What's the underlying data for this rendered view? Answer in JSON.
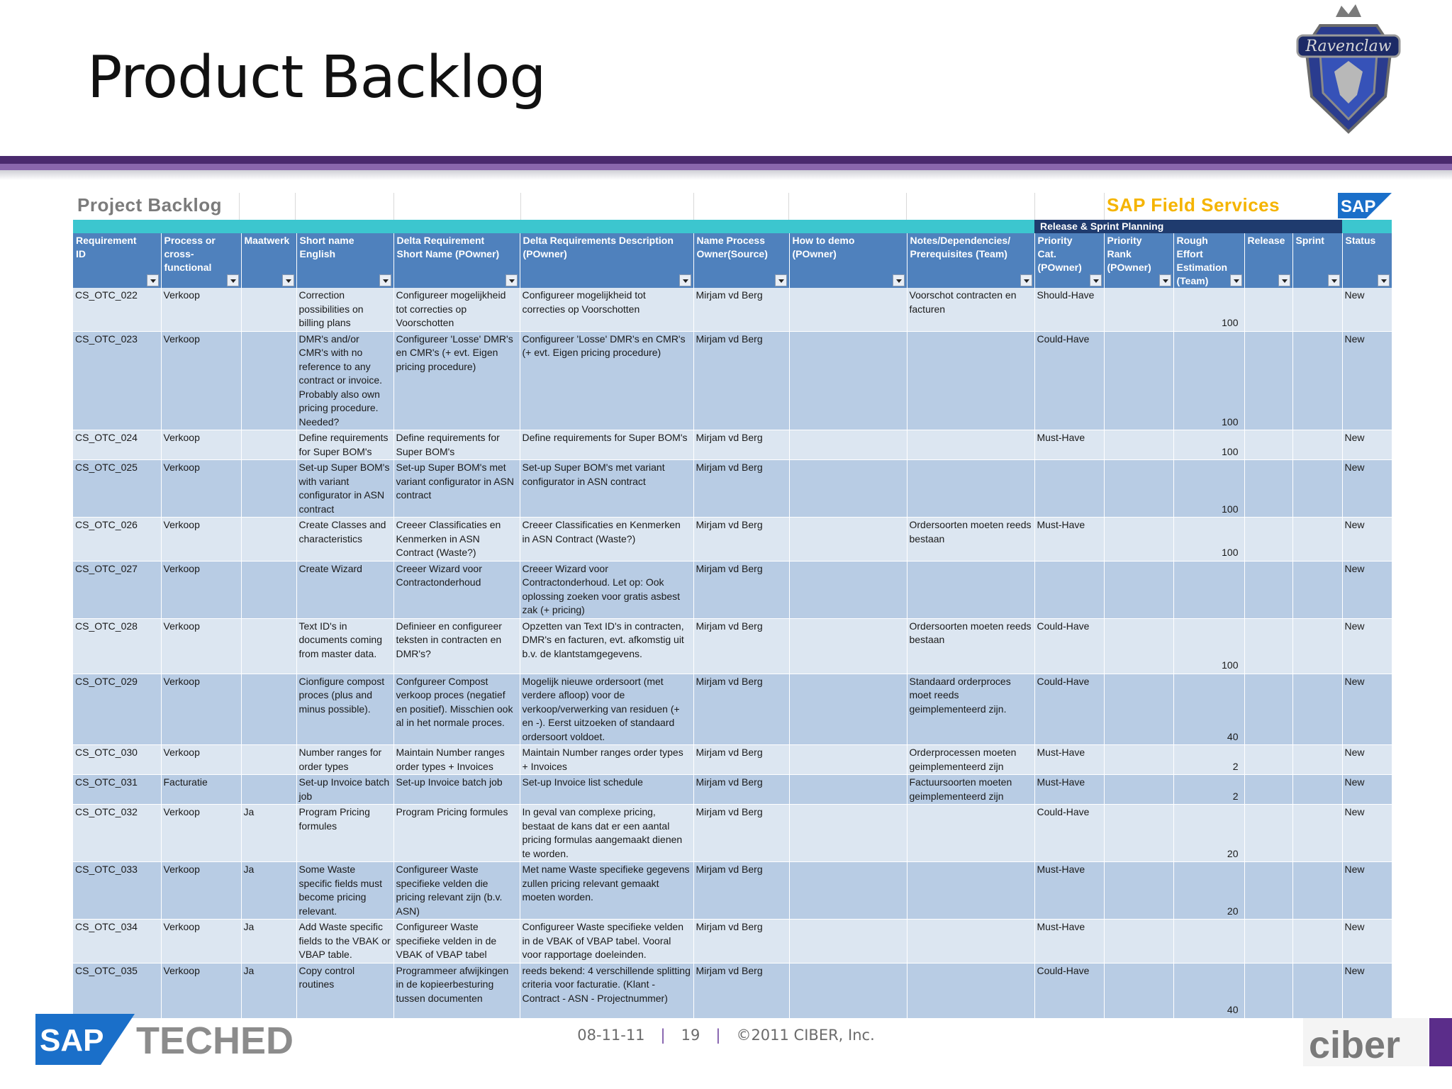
{
  "slide": {
    "title": "Product Backlog",
    "crest_text": "Ravenclaw"
  },
  "sheet": {
    "title": "Project Backlog",
    "brand": "SAP Field Services",
    "sap_logo_text": "SAP",
    "release_group": "Release & Sprint Planning"
  },
  "columns": [
    "Requirement ID",
    "Process or cross-functional",
    "Maatwerk",
    "Short name English",
    "Delta Requirement Short Name (POwner)",
    "Delta Requirements Description (POwner)",
    "Name Process Owner(Source)",
    "How to demo (POwner)",
    "Notes/Dependencies/ Prerequisites (Team)",
    "Priority Cat. (POwner)",
    "Priority Rank (POwner)",
    "Rough Effort Estimation (Team)",
    "Release",
    "Sprint",
    "Status"
  ],
  "rows": [
    [
      "CS_OTC_022",
      "Verkoop",
      "",
      "Correction possibilities on billing plans",
      "Configureer mogelijkheid tot correcties op Voorschotten",
      "Configureer mogelijkheid tot correcties op Voorschotten",
      "Mirjam vd Berg",
      "",
      "Voorschot contracten en facturen",
      "Should-Have",
      "",
      "100",
      "",
      "",
      "New"
    ],
    [
      "CS_OTC_023",
      "Verkoop",
      "",
      "DMR's and/or CMR's with no reference to any contract or invoice. Probably also own pricing procedure. Needed?",
      "Configureer 'Losse' DMR's en CMR's (+ evt. Eigen pricing procedure)",
      "Configureer 'Losse' DMR's en CMR's (+ evt. Eigen pricing procedure)",
      "Mirjam vd Berg",
      "",
      "",
      "Could-Have",
      "",
      "100",
      "",
      "",
      "New"
    ],
    [
      "CS_OTC_024",
      "Verkoop",
      "",
      "Define requirements for Super BOM's",
      "Define requirements for Super BOM's",
      "Define requirements for Super BOM's",
      "Mirjam vd Berg",
      "",
      "",
      "Must-Have",
      "",
      "100",
      "",
      "",
      "New"
    ],
    [
      "CS_OTC_025",
      "Verkoop",
      "",
      "Set-up Super BOM's with variant configurator in ASN contract",
      "Set-up Super BOM's met variant configurator in ASN contract",
      "Set-up Super BOM's met variant configurator in ASN contract",
      "Mirjam vd Berg",
      "",
      "",
      "",
      "",
      "100",
      "",
      "",
      "New"
    ],
    [
      "CS_OTC_026",
      "Verkoop",
      "",
      "Create Classes and characteristics",
      "Creeer Classificaties en Kenmerken in ASN Contract (Waste?)",
      "Creeer Classificaties en Kenmerken in ASN Contract (Waste?)",
      "Mirjam vd Berg",
      "",
      "Ordersoorten moeten reeds bestaan",
      "Must-Have",
      "",
      "100",
      "",
      "",
      "New"
    ],
    [
      "CS_OTC_027",
      "Verkoop",
      "",
      "Create Wizard",
      "Creeer Wizard voor Contractonderhoud",
      "Creeer Wizard voor Contractonderhoud. Let op: Ook oplossing zoeken voor gratis asbest zak (+ pricing)",
      "Mirjam vd Berg",
      "",
      "",
      "",
      "",
      "",
      "",
      "",
      "New"
    ],
    [
      "CS_OTC_028",
      "Verkoop",
      "",
      "Text ID's in documents coming from master data.",
      "Definieer en configureer teksten in contracten en DMR's?",
      "Opzetten van Text ID's in contracten, DMR's en facturen, evt. afkomstig uit b.v. de klantstamgegevens.",
      "Mirjam vd Berg",
      "",
      "Ordersoorten moeten reeds bestaan",
      "Could-Have",
      "",
      "100",
      "",
      "",
      "New"
    ],
    [
      "CS_OTC_029",
      "Verkoop",
      "",
      "Cionfigure compost proces (plus and minus possible).",
      "Confgureer Compost verkoop proces (negatief en positief). Misschien ook al in het normale proces.",
      "Mogelijk nieuwe ordersoort (met verdere afloop) voor de verkoop/verwerking van residuen (+ en -). Eerst uitzoeken of standaard ordersoort voldoet.",
      "Mirjam vd Berg",
      "",
      "Standaard orderproces moet reeds geimplementeerd zijn.",
      "Could-Have",
      "",
      "40",
      "",
      "",
      "New"
    ],
    [
      "CS_OTC_030",
      "Verkoop",
      "",
      "Number ranges for order types",
      "Maintain Number ranges order types + Invoices",
      "Maintain Number ranges order types + Invoices",
      "Mirjam vd Berg",
      "",
      "Orderprocessen moeten geimplementeerd zijn",
      "Must-Have",
      "",
      "2",
      "",
      "",
      "New"
    ],
    [
      "CS_OTC_031",
      "Facturatie",
      "",
      "Set-up Invoice batch job",
      "Set-up Invoice batch job",
      "Set-up Invoice list schedule",
      "Mirjam vd Berg",
      "",
      "Factuursoorten moeten geimplementeerd zijn",
      "Must-Have",
      "",
      "2",
      "",
      "",
      "New"
    ],
    [
      "CS_OTC_032",
      "Verkoop",
      "Ja",
      "Program Pricing formules",
      "Program Pricing formules",
      "In geval van complexe pricing, bestaat de kans dat er een aantal pricing formulas aangemaakt dienen te worden.",
      "Mirjam vd Berg",
      "",
      "",
      "Could-Have",
      "",
      "20",
      "",
      "",
      "New"
    ],
    [
      "CS_OTC_033",
      "Verkoop",
      "Ja",
      "Some Waste specific fields must become pricing relevant.",
      "Configureer Waste specifieke velden die pricing relevant zijn (b.v. ASN)",
      "Met name Waste specifieke gegevens zullen pricing relevant gemaakt moeten worden.",
      "Mirjam vd Berg",
      "",
      "",
      "Must-Have",
      "",
      "20",
      "",
      "",
      "New"
    ],
    [
      "CS_OTC_034",
      "Verkoop",
      "Ja",
      "Add Waste specific fields to the VBAK or VBAP table.",
      "Configureer Waste specifieke velden in de VBAK of VBAP tabel",
      "Configureer Waste specifieke velden in de VBAK of VBAP tabel. Vooral voor rapportage doeleinden.",
      "Mirjam vd Berg",
      "",
      "",
      "Must-Have",
      "",
      "",
      "",
      "",
      "New"
    ],
    [
      "CS_OTC_035",
      "Verkoop",
      "Ja",
      "Copy control routines",
      "Programmeer afwijkingen in de kopieerbesturing tussen documenten",
      "reeds bekend: 4 verschillende splitting criteria voor facturatie. (Klant - Contract - ASN - Projectnummer)",
      "Mirjam vd Berg",
      "",
      "",
      "Could-Have",
      "",
      "40",
      "",
      "",
      "New"
    ]
  ],
  "footer": {
    "date": "08-11-11",
    "page": "19",
    "copyright": "©2011 CIBER, Inc.",
    "left_logo_sap": "SAP",
    "left_logo_teched": "TECHED",
    "right_logo": "ciber"
  }
}
